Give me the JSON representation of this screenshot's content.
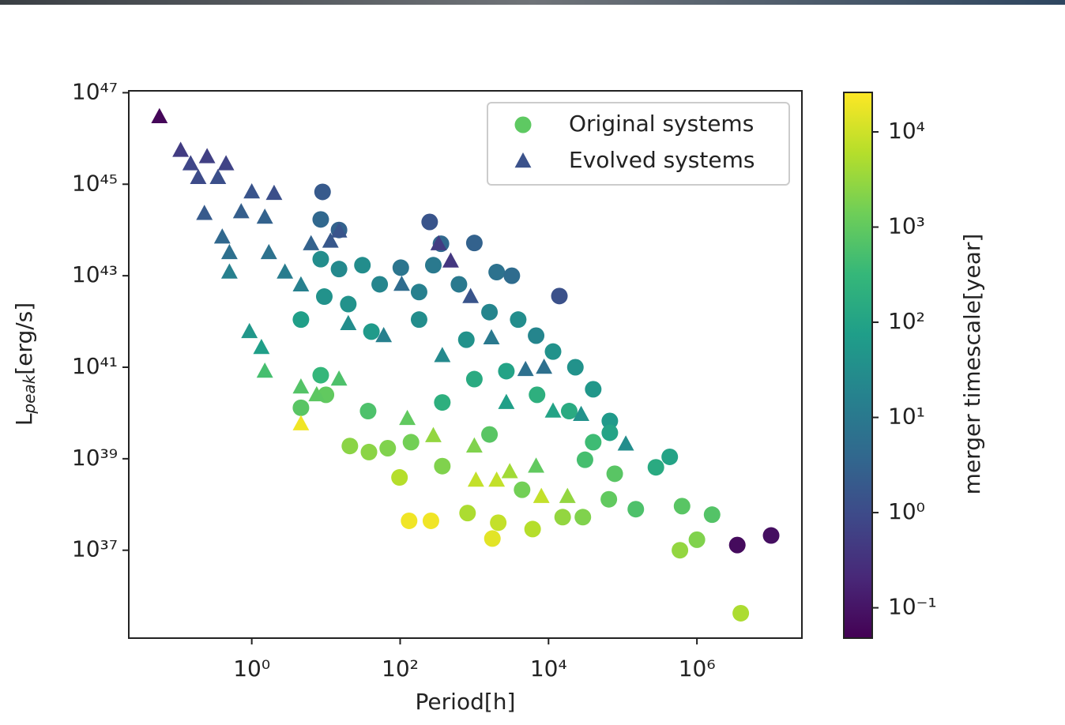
{
  "chart_data": {
    "type": "scatter",
    "xlabel": "Period[h]",
    "ylabel": {
      "main": "L",
      "sub": "peak",
      "unit": "[erg/s]"
    },
    "xscale": "log",
    "yscale": "log",
    "xlim": [
      0.022,
      26000000
    ],
    "ylim": [
      1.2e+35,
      1.1e+47
    ],
    "xticks": [
      {
        "value": 1,
        "label": "10⁰"
      },
      {
        "value": 100,
        "label": "10²"
      },
      {
        "value": 10000,
        "label": "10⁴"
      },
      {
        "value": 1000000,
        "label": "10⁶"
      }
    ],
    "yticks": [
      {
        "value": 1e+37,
        "label": "10³⁷"
      },
      {
        "value": 1e+39,
        "label": "10³⁹"
      },
      {
        "value": 1e+41,
        "label": "10⁴¹"
      },
      {
        "value": 1e+43,
        "label": "10⁴³"
      },
      {
        "value": 1e+45,
        "label": "10⁴⁵"
      },
      {
        "value": 1e+47,
        "label": "10⁴⁷"
      }
    ],
    "legend": "upper right",
    "colormap": "viridis",
    "colorbar": {
      "label": "merger timescale[year]",
      "scale": "log",
      "lim": [
        0.048,
        26000
      ],
      "ticks": [
        {
          "value": 0.1,
          "label": "10⁻¹"
        },
        {
          "value": 1,
          "label": "10⁰"
        },
        {
          "value": 10,
          "label": "10¹"
        },
        {
          "value": 100,
          "label": "10²"
        },
        {
          "value": 1000,
          "label": "10³"
        },
        {
          "value": 10000,
          "label": "10⁴"
        }
      ]
    },
    "series": [
      {
        "name": "Original systems",
        "marker": "circle",
        "color": "#5ec962",
        "x": [
          9,
          8.5,
          15,
          8.5,
          15,
          31,
          250,
          355,
          1000,
          102,
          280,
          2000,
          3200,
          14000,
          9.5,
          20,
          53,
          180,
          620,
          1600,
          3900,
          4.6,
          41,
          180,
          780,
          6800,
          11500,
          23000,
          40000,
          67000,
          67000,
          8.5,
          10,
          4.6,
          37,
          21,
          38,
          68,
          140,
          98,
          132,
          260,
          370,
          1000,
          2700,
          7000,
          19000,
          40000,
          1600,
          370,
          810,
          1750,
          2100,
          6100,
          15500,
          29000,
          65000,
          78000,
          150000,
          280000,
          430000,
          630000,
          1600000,
          590000,
          1000000,
          3500000,
          10000000,
          3900000,
          31000,
          4400
        ],
        "y": [
          6.8e+44,
          1.7e+44,
          1e+44,
          2.3e+43,
          1.4e+43,
          1.7e+43,
          1.5e+44,
          5e+43,
          5.2e+43,
          1.5e+43,
          1.7e+43,
          1.2e+43,
          1e+43,
          3.6e+42,
          3.5e+42,
          2.4e+42,
          6.5e+42,
          4.4e+42,
          6.5e+42,
          1.6e+42,
          1.1e+42,
          1.1e+42,
          6e+41,
          1.1e+42,
          4e+41,
          4.9e+41,
          2.2e+41,
          1e+41,
          3.3e+40,
          6.7e+39,
          3.7e+39,
          6.7e+40,
          2.5e+40,
          1.3e+40,
          1.1e+40,
          1.9e+39,
          1.4e+39,
          1.7e+39,
          2.3e+39,
          3.9e+38,
          4.4e+37,
          4.4e+37,
          1.7e+40,
          5.5e+40,
          8.2e+40,
          2.5e+40,
          1.1e+40,
          2.3e+39,
          3.4e+39,
          6.9e+38,
          6.5e+37,
          1.8e+37,
          4e+37,
          2.9e+37,
          5.3e+37,
          5.3e+37,
          1.3e+38,
          4.7e+38,
          7.9e+37,
          6.5e+38,
          1.1e+39,
          9.2e+37,
          6e+37,
          1e+37,
          1.7e+37,
          1.3e+37,
          2.1e+37,
          4.2e+35,
          9.5e+38,
          2.1e+38
        ],
        "c": [
          2,
          4,
          3,
          30,
          25,
          30,
          1.5,
          4,
          3,
          8,
          10,
          7,
          5,
          1.3,
          40,
          40,
          20,
          15,
          10,
          20,
          30,
          80,
          60,
          30,
          40,
          20,
          40,
          40,
          50,
          60,
          100,
          300,
          1000,
          800,
          600,
          2500,
          2500,
          2000,
          1500,
          6000,
          20000,
          20000,
          200,
          150,
          100,
          200,
          150,
          400,
          800,
          2000,
          5000,
          15000,
          8000,
          6000,
          3000,
          2000,
          1000,
          800,
          600,
          150,
          100,
          800,
          700,
          3000,
          2000,
          0.07,
          0.08,
          5000,
          500,
          1500
        ]
      },
      {
        "name": "Evolved systems",
        "marker": "triangle",
        "color": "#3b528b",
        "x": [
          0.057,
          0.11,
          0.15,
          0.25,
          0.45,
          0.19,
          0.35,
          1,
          2,
          0.23,
          0.72,
          0.4,
          1.5,
          0.5,
          1.7,
          6.3,
          15,
          11.5,
          0.5,
          2.8,
          4.6,
          330,
          480,
          105,
          890,
          0.93,
          1.35,
          20,
          60,
          1700,
          370,
          4900,
          8700,
          1.5,
          4.6,
          7.5,
          4.6,
          15,
          125,
          280,
          1000,
          1050,
          2000,
          3000,
          8000,
          18000,
          6800,
          27500,
          110000,
          2700,
          11500
        ],
        "y": [
          3e+46,
          5.5e+45,
          2.8e+45,
          4e+45,
          2.8e+45,
          1.4e+45,
          1.4e+45,
          6.8e+44,
          6.3e+44,
          2.3e+44,
          2.5e+44,
          7e+43,
          1.9e+44,
          3.2e+43,
          3.2e+43,
          5e+43,
          9.5e+43,
          5.7e+43,
          1.2e+43,
          1.2e+43,
          6.3e+42,
          5e+43,
          2.1e+43,
          6.5e+42,
          3.5e+42,
          6e+41,
          2.7e+41,
          9e+41,
          4.9e+41,
          4.4e+41,
          1.8e+41,
          8.9e+40,
          1e+41,
          8.2e+40,
          3.7e+40,
          2.5e+40,
          5.8e+39,
          5.5e+40,
          7.6e+39,
          3.2e+39,
          1.9e+39,
          3.4e+38,
          3.4e+38,
          5.2e+38,
          1.5e+38,
          1.5e+38,
          6.9e+38,
          9.3e+39,
          2.1e+39,
          1.7e+40,
          1.1e+40
        ],
        "c": [
          0.06,
          0.5,
          0.8,
          0.6,
          0.7,
          1,
          1.2,
          1.5,
          1.2,
          2,
          2.5,
          4,
          3,
          6,
          7,
          3,
          1.5,
          1.8,
          15,
          12,
          15,
          0.5,
          0.4,
          5,
          1.5,
          50,
          80,
          30,
          15,
          10,
          25,
          6,
          6,
          500,
          700,
          900,
          20000,
          600,
          1000,
          3000,
          2000,
          8000,
          8000,
          4000,
          8000,
          3000,
          1000,
          40,
          30,
          80,
          100
        ]
      }
    ]
  }
}
